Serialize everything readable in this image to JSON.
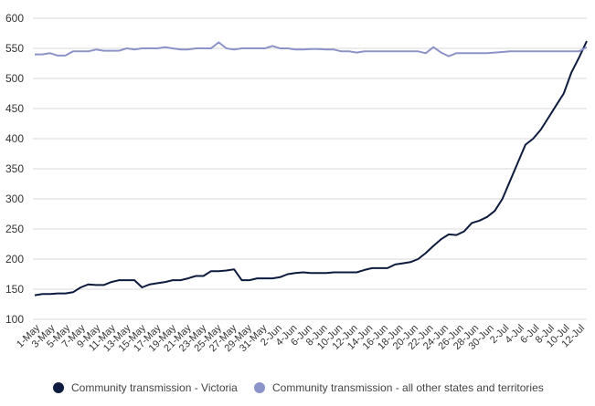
{
  "chart_data": {
    "type": "line",
    "title": "",
    "xlabel": "",
    "ylabel": "",
    "ylim": [
      100,
      600
    ],
    "yticks": [
      100,
      150,
      200,
      250,
      300,
      350,
      400,
      450,
      500,
      550,
      600
    ],
    "grid": true,
    "legend_position": "bottom",
    "x_tick_labels": [
      "1-May",
      "3-May",
      "5-May",
      "7-May",
      "9-May",
      "11-May",
      "13-May",
      "15-May",
      "17-May",
      "19-May",
      "21-May",
      "23-May",
      "25-May",
      "27-May",
      "29-May",
      "31-May",
      "2-Jun",
      "4-Jun",
      "6-Jun",
      "8-Jun",
      "10-Jun",
      "12-Jun",
      "14-Jun",
      "16-Jun",
      "18-Jun",
      "20-Jun",
      "22-Jun",
      "24-Jun",
      "26-Jun",
      "28-Jun",
      "30-Jun",
      "2-Jul",
      "4-Jul",
      "6-Jul",
      "8-Jul",
      "10-Jul",
      "12-Jul"
    ],
    "series": [
      {
        "name": "Community transmission - Victoria",
        "color": "#0d1b3e",
        "values": [
          140,
          142,
          142,
          143,
          143,
          145,
          153,
          158,
          157,
          157,
          162,
          165,
          165,
          165,
          153,
          158,
          160,
          162,
          165,
          165,
          168,
          172,
          172,
          180,
          180,
          181,
          183,
          165,
          165,
          168,
          168,
          168,
          170,
          175,
          177,
          178,
          177,
          177,
          177,
          178,
          178,
          178,
          178,
          182,
          185,
          185,
          185,
          191,
          193,
          195,
          200,
          210,
          222,
          233,
          241,
          240,
          246,
          260,
          264,
          270,
          280,
          300,
          330,
          360,
          390,
          400,
          415,
          435,
          455,
          475,
          510,
          535,
          562
        ]
      },
      {
        "name": "Community transmission - all other states and territories",
        "color": "#8b93c9",
        "values": [
          540,
          540,
          542,
          538,
          538,
          545,
          545,
          545,
          548,
          546,
          546,
          546,
          550,
          548,
          550,
          550,
          550,
          552,
          550,
          548,
          548,
          550,
          550,
          550,
          560,
          550,
          548,
          550,
          550,
          550,
          550,
          554,
          550,
          550,
          548,
          548,
          549,
          549,
          548,
          548,
          545,
          545,
          543,
          545,
          545,
          545,
          545,
          545,
          545,
          545,
          545,
          542,
          552,
          543,
          537,
          542,
          542,
          542,
          542,
          542,
          543,
          544,
          545,
          545,
          545,
          545,
          545,
          545,
          545,
          545,
          545,
          545,
          552
        ]
      }
    ]
  }
}
